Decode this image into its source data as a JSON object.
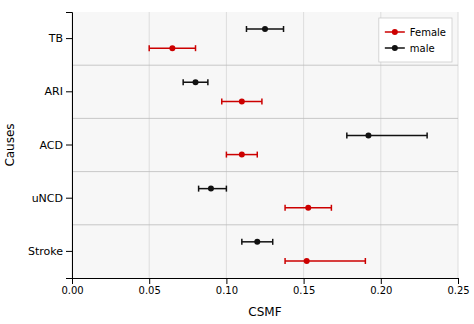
{
  "chart_data": {
    "type": "errorbar",
    "orientation": "horizontal",
    "categories": [
      "TB",
      "ARI",
      "ACD",
      "uNCD",
      "Stroke"
    ],
    "series": [
      {
        "name": "Female",
        "color": "#cc0000",
        "marker": "circle",
        "values": [
          0.065,
          0.11,
          0.11,
          0.153,
          0.152
        ],
        "lower": [
          0.05,
          0.097,
          0.1,
          0.138,
          0.138
        ],
        "upper": [
          0.08,
          0.123,
          0.12,
          0.168,
          0.19
        ]
      },
      {
        "name": "male",
        "color": "#111111",
        "marker": "circle",
        "values": [
          0.125,
          0.08,
          0.192,
          0.09,
          0.12
        ],
        "lower": [
          0.113,
          0.072,
          0.178,
          0.082,
          0.11
        ],
        "upper": [
          0.137,
          0.088,
          0.23,
          0.1,
          0.13
        ]
      }
    ],
    "x_label": "CSMF",
    "y_label": "Causes",
    "xlim": [
      0.0,
      0.25
    ],
    "xticks": [
      {
        "value": 0.0,
        "label": "0.00"
      },
      {
        "value": 0.05,
        "label": "0.05"
      },
      {
        "value": 0.1,
        "label": "0.10"
      },
      {
        "value": 0.15,
        "label": "0.15"
      },
      {
        "value": 0.2,
        "label": "0.20"
      },
      {
        "value": 0.25,
        "label": "0.25"
      }
    ],
    "grid": true,
    "legend": "upper right"
  }
}
